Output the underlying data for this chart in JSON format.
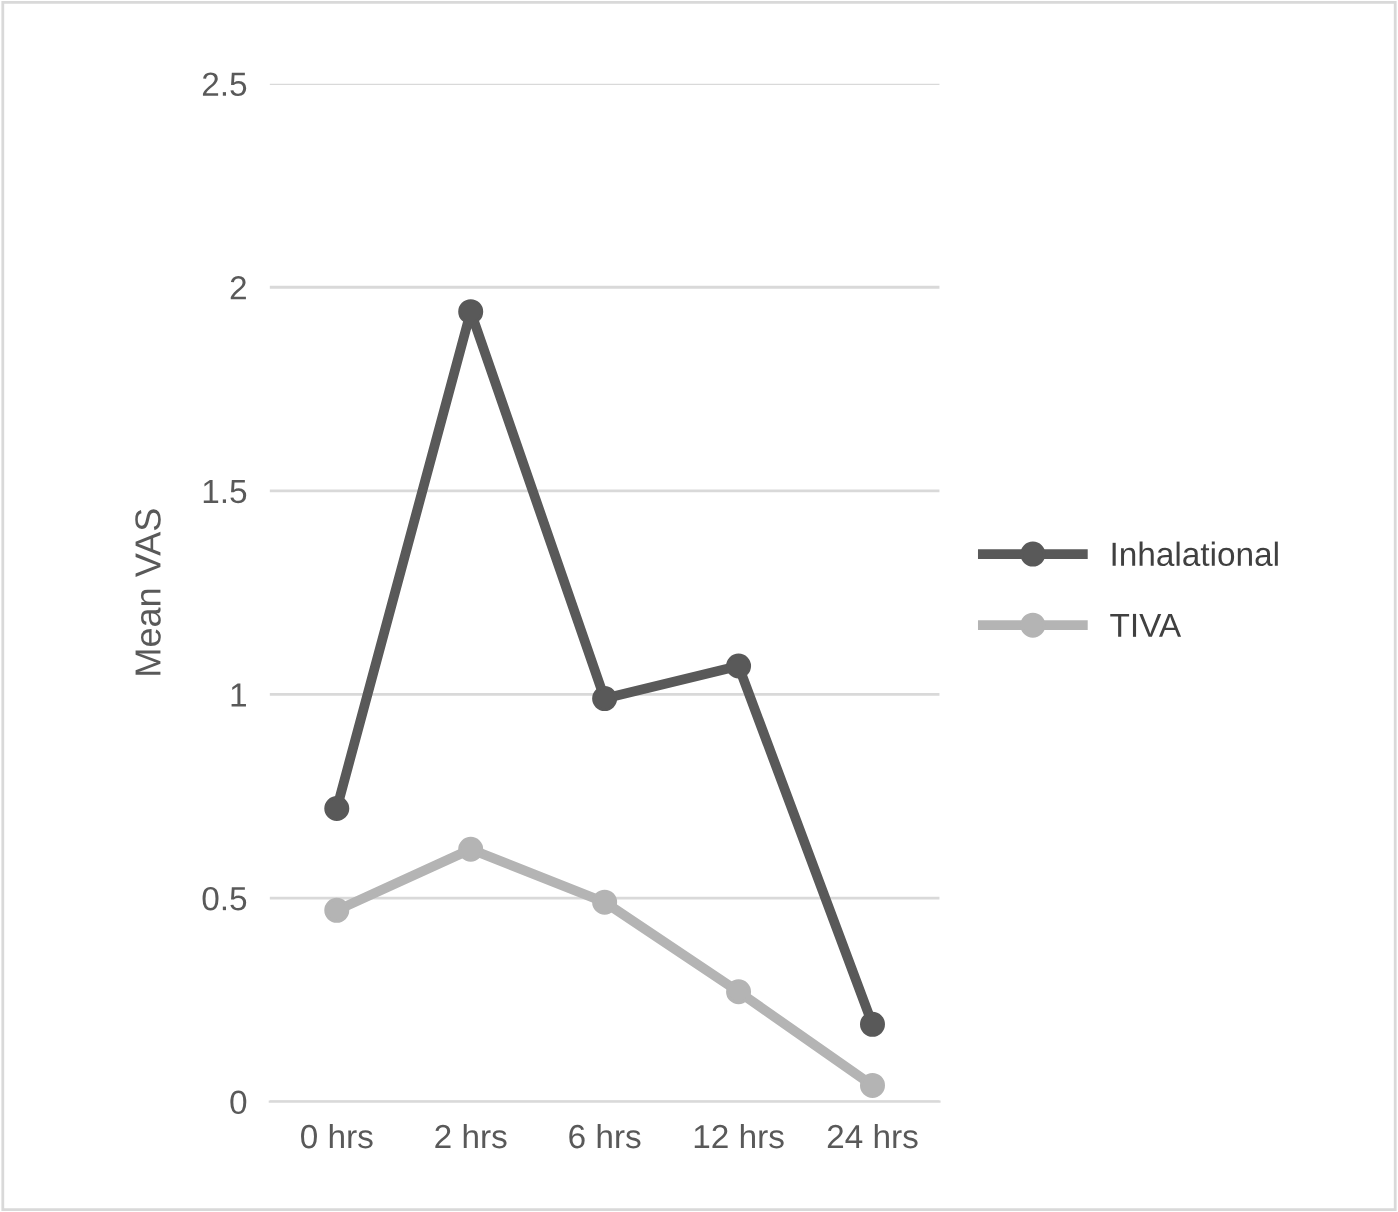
{
  "chart_data": {
    "type": "line",
    "ylabel": "Mean VAS",
    "categories": [
      "0 hrs",
      "2 hrs",
      "6 hrs",
      "12 hrs",
      "24 hrs"
    ],
    "series": [
      {
        "name": "Inhalational",
        "color": "#595959",
        "values": [
          0.72,
          1.94,
          0.99,
          1.07,
          0.19
        ]
      },
      {
        "name": "TIVA",
        "color": "#b4b4b4",
        "values": [
          0.47,
          0.62,
          0.49,
          0.27,
          0.04
        ]
      }
    ],
    "ylim": [
      0,
      2.5
    ],
    "yticks": [
      0,
      0.5,
      1,
      1.5,
      2,
      2.5
    ],
    "grid": "y",
    "legend": "right",
    "marker": "circle",
    "line_style": "solid"
  }
}
